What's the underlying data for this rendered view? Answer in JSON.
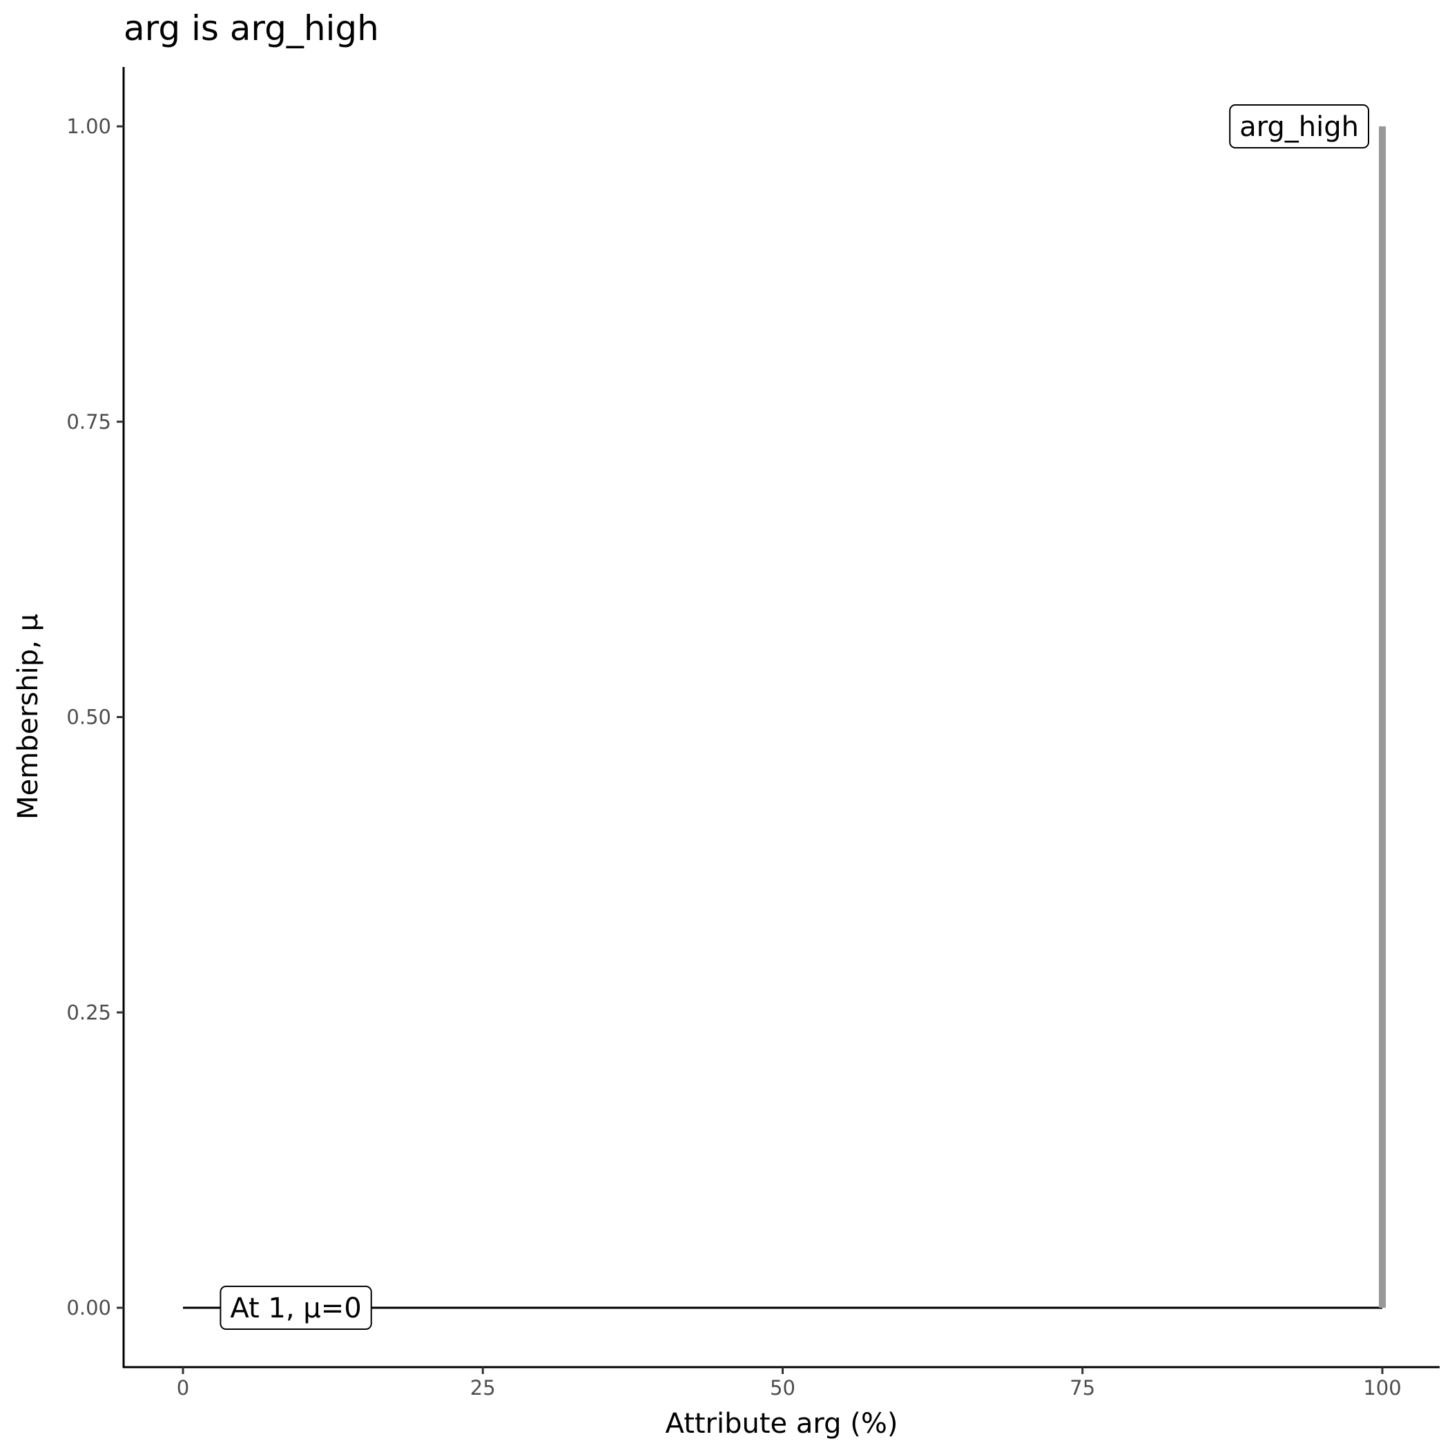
{
  "chart_data": {
    "type": "line",
    "title": "arg is arg_high",
    "xlabel": "Attribute arg (%)",
    "ylabel": "Membership, μ",
    "xlim": [
      -5,
      105
    ],
    "ylim": [
      -0.05,
      1.05
    ],
    "xticks": [
      0,
      25,
      50,
      75,
      100
    ],
    "xtick_labels": [
      "0",
      "25",
      "50",
      "75",
      "100"
    ],
    "yticks": [
      0,
      0.25,
      0.5,
      0.75,
      1
    ],
    "ytick_labels": [
      "0.00",
      "0.25",
      "0.50",
      "0.75",
      "1.00"
    ],
    "grid": false,
    "series": [
      {
        "color": "#000000",
        "points": [
          [
            0,
            0
          ],
          [
            100,
            0
          ]
        ]
      },
      {
        "color": "#999999",
        "points": [
          [
            100,
            0
          ],
          [
            100,
            1
          ]
        ]
      }
    ],
    "annotations": [
      {
        "text": "At 1, μ=0",
        "x": 1,
        "y": 0,
        "anchor": "left"
      },
      {
        "text": "arg_high",
        "x": 100,
        "y": 1,
        "anchor": "right"
      }
    ]
  }
}
